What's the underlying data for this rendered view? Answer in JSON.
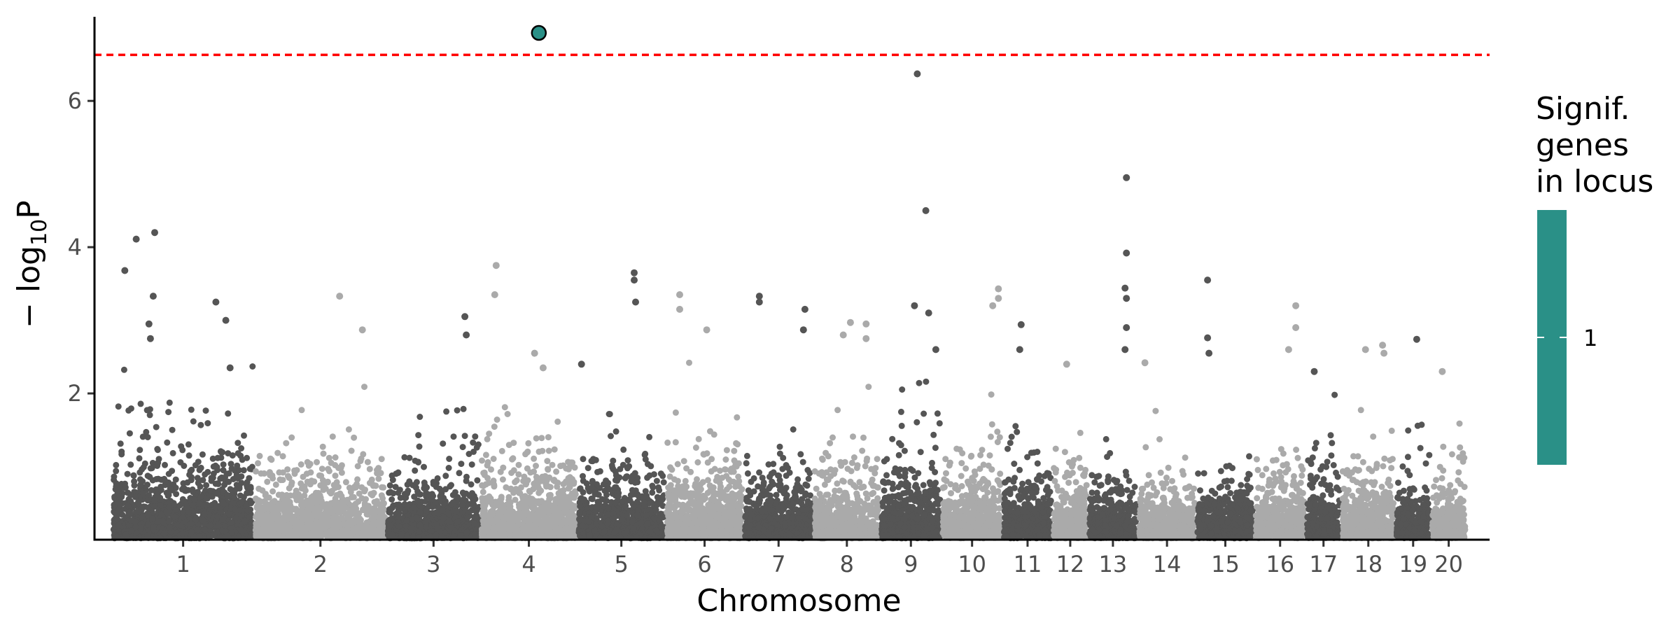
{
  "chart_data": {
    "type": "scatter",
    "title": "",
    "xlabel": "Chromosome",
    "ylabel_main": "− log",
    "ylabel_sub": "10",
    "ylabel_tail": "P",
    "ylim": [
      0,
      7.15
    ],
    "yticks": [
      2,
      4,
      6
    ],
    "threshold": 6.63,
    "threshold_color": "#ff0000",
    "colors": {
      "dark": "#555555",
      "light": "#aaaaaa",
      "highlight": "#2a9087"
    },
    "chromosomes": [
      {
        "label": "1",
        "start": 0,
        "end": 1.0,
        "height": 2.4,
        "shade": "dark"
      },
      {
        "label": "2",
        "start": 1.0,
        "end": 1.93,
        "height": 1.9,
        "shade": "light"
      },
      {
        "label": "3",
        "start": 1.93,
        "end": 2.59,
        "height": 1.8,
        "shade": "dark"
      },
      {
        "label": "4",
        "start": 2.59,
        "end": 3.27,
        "height": 2.1,
        "shade": "light"
      },
      {
        "label": "5",
        "start": 3.27,
        "end": 3.89,
        "height": 2.0,
        "shade": "dark"
      },
      {
        "label": "6",
        "start": 3.89,
        "end": 4.44,
        "height": 2.2,
        "shade": "light"
      },
      {
        "label": "7",
        "start": 4.44,
        "end": 4.93,
        "height": 1.9,
        "shade": "dark"
      },
      {
        "label": "8",
        "start": 4.93,
        "end": 5.4,
        "height": 1.9,
        "shade": "light"
      },
      {
        "label": "9",
        "start": 5.4,
        "end": 5.83,
        "height": 2.2,
        "shade": "dark"
      },
      {
        "label": "10",
        "start": 5.83,
        "end": 6.26,
        "height": 2.0,
        "shade": "light"
      },
      {
        "label": "11",
        "start": 6.26,
        "end": 6.61,
        "height": 1.8,
        "shade": "dark"
      },
      {
        "label": "12",
        "start": 6.61,
        "end": 6.86,
        "height": 1.9,
        "shade": "light"
      },
      {
        "label": "13",
        "start": 6.86,
        "end": 7.21,
        "height": 1.6,
        "shade": "dark"
      },
      {
        "label": "14",
        "start": 7.21,
        "end": 7.62,
        "height": 1.6,
        "shade": "light"
      },
      {
        "label": "15",
        "start": 7.62,
        "end": 8.03,
        "height": 1.5,
        "shade": "dark"
      },
      {
        "label": "16",
        "start": 8.03,
        "end": 8.39,
        "height": 2.0,
        "shade": "light"
      },
      {
        "label": "17",
        "start": 8.39,
        "end": 8.64,
        "height": 1.8,
        "shade": "dark"
      },
      {
        "label": "18",
        "start": 8.64,
        "end": 9.02,
        "height": 1.9,
        "shade": "light"
      },
      {
        "label": "19",
        "start": 9.02,
        "end": 9.27,
        "height": 1.6,
        "shade": "dark"
      },
      {
        "label": "20",
        "start": 9.27,
        "end": 9.52,
        "height": 1.6,
        "shade": "light"
      }
    ],
    "peaks": [
      {
        "x": 0.09,
        "y": 3.68
      },
      {
        "x": 0.17,
        "y": 4.11
      },
      {
        "x": 0.3,
        "y": 4.2
      },
      {
        "x": 0.29,
        "y": 3.33
      },
      {
        "x": 0.26,
        "y": 2.95
      },
      {
        "x": 0.27,
        "y": 2.75
      },
      {
        "x": 0.73,
        "y": 3.25
      },
      {
        "x": 0.8,
        "y": 3.0
      },
      {
        "x": 0.83,
        "y": 2.35
      },
      {
        "x": 1.6,
        "y": 3.33
      },
      {
        "x": 1.76,
        "y": 2.87
      },
      {
        "x": 2.48,
        "y": 3.05
      },
      {
        "x": 2.49,
        "y": 2.8
      },
      {
        "x": 2.7,
        "y": 3.75
      },
      {
        "x": 2.69,
        "y": 3.35
      },
      {
        "x": 2.97,
        "y": 2.55
      },
      {
        "x": 3.03,
        "y": 2.35
      },
      {
        "x": 3.3,
        "y": 2.4
      },
      {
        "x": 3.67,
        "y": 3.65
      },
      {
        "x": 3.67,
        "y": 3.55
      },
      {
        "x": 3.68,
        "y": 3.25
      },
      {
        "x": 3.99,
        "y": 3.35
      },
      {
        "x": 3.99,
        "y": 3.15
      },
      {
        "x": 4.18,
        "y": 2.87
      },
      {
        "x": 4.55,
        "y": 3.33
      },
      {
        "x": 4.55,
        "y": 3.25
      },
      {
        "x": 4.87,
        "y": 3.15
      },
      {
        "x": 4.86,
        "y": 2.87
      },
      {
        "x": 5.19,
        "y": 2.97
      },
      {
        "x": 5.3,
        "y": 2.95
      },
      {
        "x": 5.14,
        "y": 2.8
      },
      {
        "x": 5.3,
        "y": 2.75
      },
      {
        "x": 5.64,
        "y": 3.2
      },
      {
        "x": 5.66,
        "y": 6.37
      },
      {
        "x": 5.72,
        "y": 4.5
      },
      {
        "x": 5.74,
        "y": 3.1
      },
      {
        "x": 5.79,
        "y": 2.6
      },
      {
        "x": 6.19,
        "y": 3.2
      },
      {
        "x": 6.23,
        "y": 3.43
      },
      {
        "x": 6.23,
        "y": 3.3
      },
      {
        "x": 6.39,
        "y": 2.94
      },
      {
        "x": 6.38,
        "y": 2.6
      },
      {
        "x": 6.71,
        "y": 2.4
      },
      {
        "x": 7.13,
        "y": 4.95
      },
      {
        "x": 7.13,
        "y": 3.92
      },
      {
        "x": 7.12,
        "y": 3.44
      },
      {
        "x": 7.13,
        "y": 3.3
      },
      {
        "x": 7.13,
        "y": 2.9
      },
      {
        "x": 7.12,
        "y": 2.6
      },
      {
        "x": 7.26,
        "y": 2.42
      },
      {
        "x": 7.7,
        "y": 3.55
      },
      {
        "x": 7.7,
        "y": 2.76
      },
      {
        "x": 7.71,
        "y": 2.55
      },
      {
        "x": 8.32,
        "y": 3.2
      },
      {
        "x": 8.32,
        "y": 2.9
      },
      {
        "x": 8.27,
        "y": 2.6
      },
      {
        "x": 8.45,
        "y": 2.3
      },
      {
        "x": 8.81,
        "y": 2.6
      },
      {
        "x": 8.93,
        "y": 2.66
      },
      {
        "x": 8.94,
        "y": 2.55
      },
      {
        "x": 9.17,
        "y": 2.74
      },
      {
        "x": 9.35,
        "y": 2.3
      }
    ],
    "significant_points": [
      {
        "chromosome": "4",
        "x": 3.0,
        "y": 6.93
      }
    ],
    "legend": {
      "title_lines": [
        "Signif.",
        "genes",
        "in locus"
      ],
      "labels": [
        "1"
      ],
      "placement": "right"
    }
  }
}
